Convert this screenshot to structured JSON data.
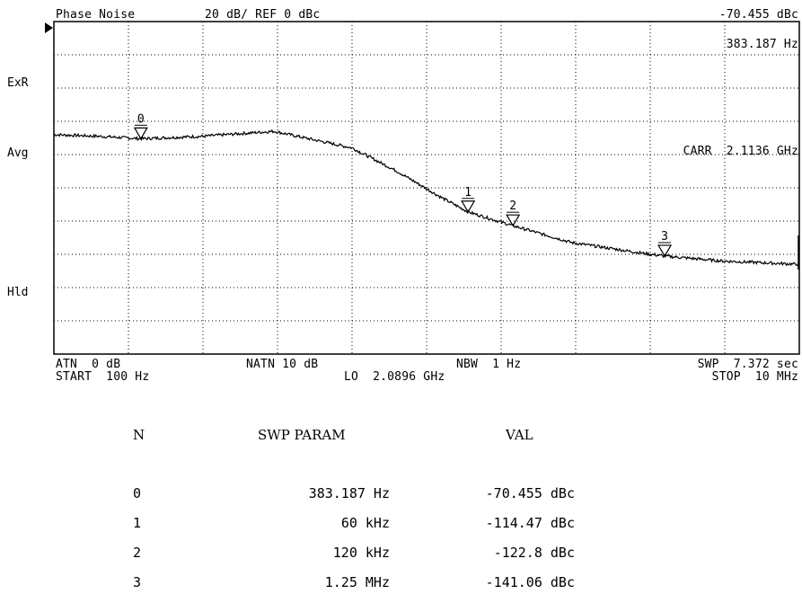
{
  "header": {
    "mode": "Phase Noise",
    "scale": "20 dB/ REF 0 dBc",
    "marker_level": "-70.455 dBc",
    "marker_freq": "383.187 Hz",
    "carrier": "CARR  2.1136 GHz"
  },
  "side_labels": {
    "exr": "ExR",
    "avg": "Avg",
    "hld": "Hld"
  },
  "footer": {
    "atn": "ATN  0 dB",
    "natn": "NATN 10 dB",
    "nbw": "NBW  1 Hz",
    "swp": "SWP  7.372 sec",
    "start": "START  100 Hz",
    "lo": "LO  2.0896 GHz",
    "stop": "STOP  10 MHz"
  },
  "table": {
    "headers": {
      "n": "N",
      "param": "SWP PARAM",
      "val": "VAL"
    },
    "rows": [
      {
        "n": "0",
        "param": "383.187 Hz",
        "val": "-70.455 dBc"
      },
      {
        "n": "1",
        "param": "60 kHz",
        "val": "-114.47 dBc"
      },
      {
        "n": "2",
        "param": "120 kHz",
        "val": "-122.8 dBc"
      },
      {
        "n": "3",
        "param": "1.25 MHz",
        "val": "-141.06 dBc"
      }
    ]
  },
  "colors": {
    "trace": "#000000",
    "grid": "#000000",
    "background": "#ffffff"
  },
  "chart_data": {
    "type": "line",
    "title": "Phase Noise",
    "xlabel": "",
    "ylabel": "",
    "xscale": "log",
    "xlim": [
      100,
      10000000
    ],
    "ylim": [
      -200,
      0
    ],
    "y_div": 20,
    "grid": true,
    "series": [
      {
        "x": [
          100,
          200,
          383.187,
          1000,
          3000,
          10000,
          20000,
          40000,
          60000,
          120000,
          300000,
          1000000,
          1250000,
          3000000,
          10000000
        ],
        "values": [
          -68,
          -69,
          -70.455,
          -69,
          -66,
          -76,
          -90,
          -106,
          -114.47,
          -122.8,
          -133,
          -140,
          -141.06,
          -144,
          -146
        ]
      }
    ],
    "markers": [
      {
        "label": "0",
        "x": 383.187,
        "y": -70.455
      },
      {
        "label": "1",
        "x": 60000,
        "y": -114.47
      },
      {
        "label": "2",
        "x": 120000,
        "y": -122.8
      },
      {
        "label": "3",
        "x": 1250000,
        "y": -141.06
      }
    ]
  }
}
